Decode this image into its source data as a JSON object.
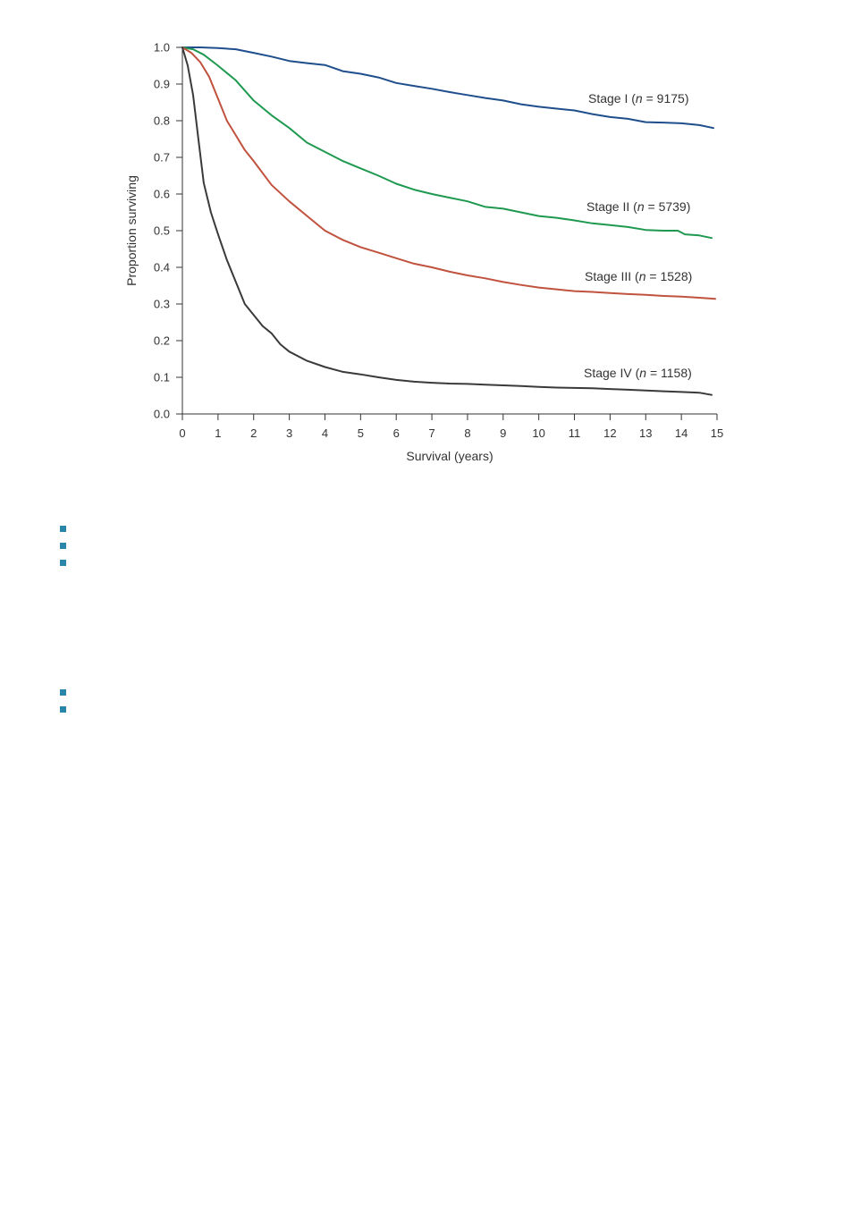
{
  "colors": {
    "stage1": "#1f4e8c",
    "stage2": "#1f9950",
    "stage3": "#c0523e",
    "stage4": "#3a3a3a",
    "axis": "#333333",
    "bullet": "#2a86a8"
  },
  "chart_data": {
    "type": "line",
    "xlabel": "Survival (years)",
    "ylabel": "Proportion surviving",
    "xlim": [
      0,
      15
    ],
    "ylim": [
      0,
      1.0
    ],
    "x_ticks": [
      0,
      1,
      2,
      3,
      4,
      5,
      6,
      7,
      8,
      9,
      10,
      11,
      12,
      13,
      14,
      15
    ],
    "y_ticks": [
      "0.0",
      "0.1",
      "0.2",
      "0.3",
      "0.4",
      "0.5",
      "0.6",
      "0.7",
      "0.8",
      "0.9",
      "1.0"
    ],
    "grid": false,
    "series": [
      {
        "key": "stage1",
        "label_prefix": "Stage I (",
        "label_n": "n",
        "label_suffix": " = 9175)",
        "x": [
          0,
          0.5,
          1,
          1.5,
          2,
          2.5,
          3,
          3.5,
          4,
          4.5,
          5,
          5.5,
          6,
          6.5,
          7,
          7.5,
          8,
          8.5,
          9,
          9.5,
          10,
          10.5,
          11,
          11.5,
          12,
          12.5,
          13,
          13.5,
          14,
          14.5,
          14.9
        ],
        "y": [
          1.0,
          1.0,
          0.998,
          0.995,
          0.985,
          0.975,
          0.963,
          0.957,
          0.952,
          0.935,
          0.928,
          0.918,
          0.903,
          0.895,
          0.887,
          0.878,
          0.87,
          0.862,
          0.855,
          0.845,
          0.838,
          0.833,
          0.828,
          0.818,
          0.81,
          0.805,
          0.796,
          0.795,
          0.793,
          0.788,
          0.78
        ]
      },
      {
        "key": "stage2",
        "label_prefix": "Stage II (",
        "label_n": "n",
        "label_suffix": " = 5739)",
        "x": [
          0,
          0.3,
          0.6,
          1,
          1.5,
          2,
          2.5,
          3,
          3.5,
          4,
          4.5,
          5,
          5.5,
          6,
          6.5,
          7,
          7.5,
          8,
          8.5,
          9,
          9.5,
          10,
          10.5,
          11,
          11.5,
          12,
          12.5,
          13,
          13.5,
          13.9,
          14.1,
          14.5,
          14.85
        ],
        "y": [
          1.0,
          0.995,
          0.98,
          0.95,
          0.91,
          0.855,
          0.815,
          0.78,
          0.74,
          0.715,
          0.69,
          0.67,
          0.65,
          0.628,
          0.612,
          0.6,
          0.59,
          0.58,
          0.565,
          0.56,
          0.55,
          0.54,
          0.535,
          0.528,
          0.52,
          0.515,
          0.51,
          0.502,
          0.5,
          0.5,
          0.49,
          0.487,
          0.48
        ]
      },
      {
        "key": "stage3",
        "label_prefix": "Stage III (",
        "label_n": "n",
        "label_suffix": " = 1528)",
        "x": [
          0,
          0.25,
          0.5,
          0.75,
          1,
          1.25,
          1.5,
          1.75,
          2,
          2.5,
          3,
          3.5,
          4,
          4.5,
          5,
          5.5,
          6,
          6.5,
          7,
          7.5,
          8,
          8.5,
          9,
          9.5,
          10,
          10.5,
          11,
          11.5,
          12,
          12.5,
          13,
          13.5,
          14,
          14.5,
          14.95
        ],
        "y": [
          1.0,
          0.985,
          0.96,
          0.92,
          0.86,
          0.8,
          0.76,
          0.72,
          0.69,
          0.625,
          0.58,
          0.54,
          0.5,
          0.475,
          0.455,
          0.44,
          0.425,
          0.41,
          0.4,
          0.388,
          0.378,
          0.37,
          0.36,
          0.352,
          0.345,
          0.34,
          0.335,
          0.333,
          0.33,
          0.327,
          0.325,
          0.322,
          0.32,
          0.317,
          0.314
        ]
      },
      {
        "key": "stage4",
        "label_prefix": "Stage IV (",
        "label_n": "n",
        "label_suffix": " = 1158)",
        "x": [
          0,
          0.15,
          0.3,
          0.45,
          0.6,
          0.8,
          1,
          1.25,
          1.5,
          1.75,
          2,
          2.25,
          2.5,
          2.75,
          3,
          3.5,
          4,
          4.5,
          5,
          5.5,
          6,
          6.5,
          7,
          7.5,
          8,
          8.5,
          9,
          9.5,
          10,
          10.5,
          11,
          11.5,
          12,
          12.5,
          13,
          13.5,
          14,
          14.5,
          14.85
        ],
        "y": [
          1.0,
          0.95,
          0.87,
          0.75,
          0.63,
          0.55,
          0.49,
          0.42,
          0.36,
          0.3,
          0.27,
          0.24,
          0.22,
          0.19,
          0.17,
          0.145,
          0.128,
          0.115,
          0.108,
          0.1,
          0.093,
          0.088,
          0.085,
          0.083,
          0.082,
          0.08,
          0.078,
          0.076,
          0.074,
          0.072,
          0.071,
          0.07,
          0.068,
          0.066,
          0.064,
          0.062,
          0.06,
          0.058,
          0.052
        ]
      }
    ]
  }
}
